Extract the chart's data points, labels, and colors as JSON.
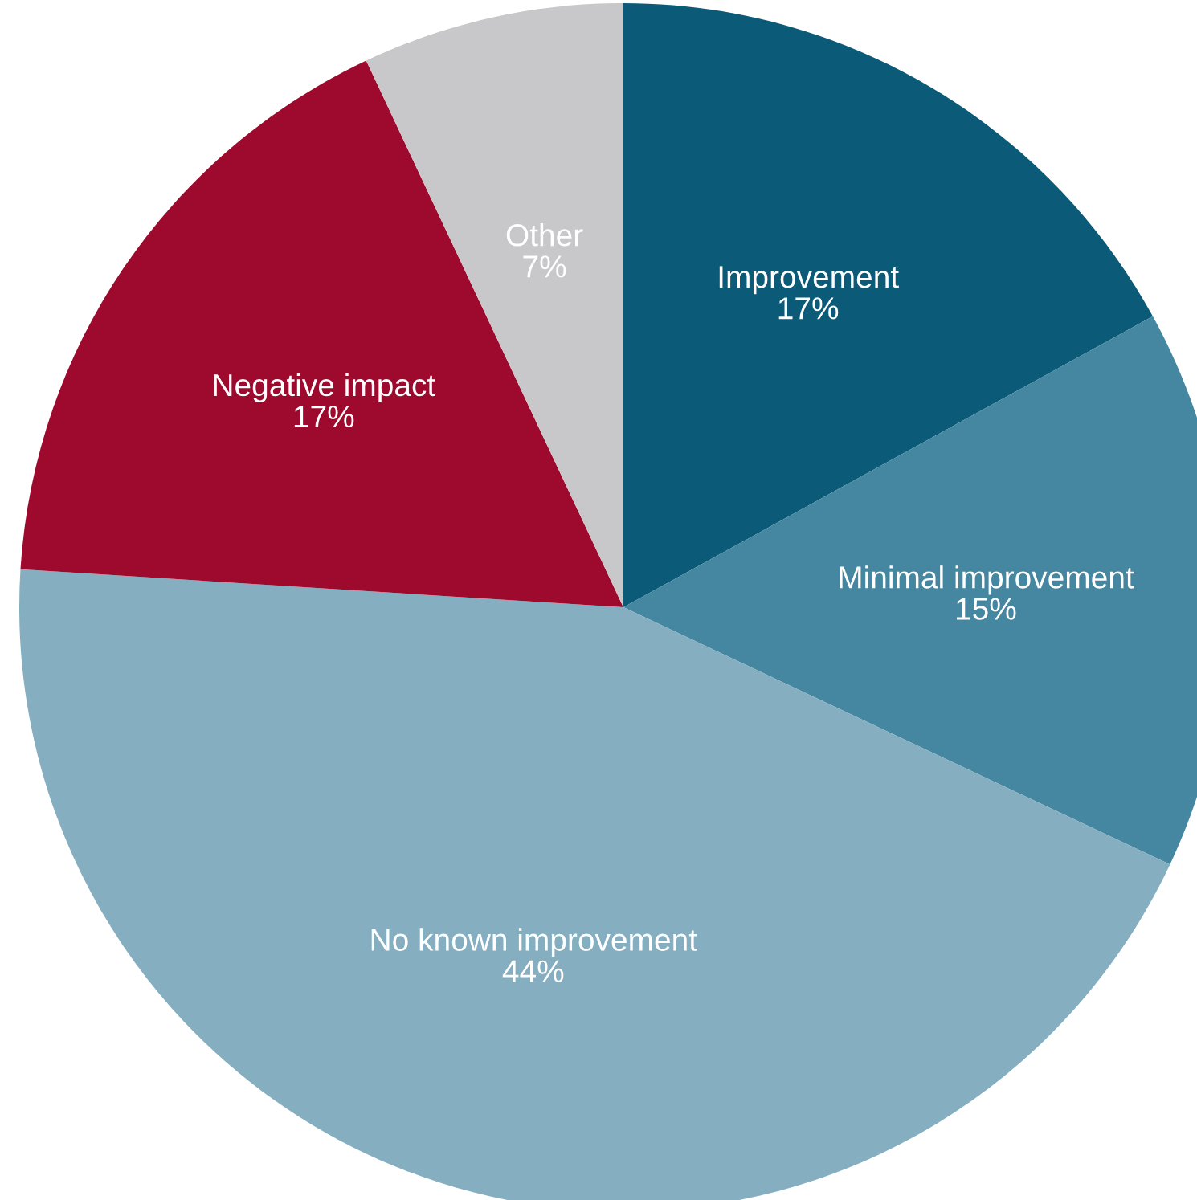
{
  "chart_data": {
    "type": "pie",
    "categories": [
      "Improvement",
      "Minimal improvement",
      "No known improvement",
      "Negative impact",
      "Other"
    ],
    "values": [
      17,
      15,
      44,
      17,
      7
    ],
    "value_labels": [
      "17%",
      "15%",
      "44%",
      "17%",
      "7%"
    ],
    "colors": [
      "#0a5a78",
      "#4587a1",
      "#85afc0",
      "#9e0a2e",
      "#c8c8ca"
    ]
  }
}
